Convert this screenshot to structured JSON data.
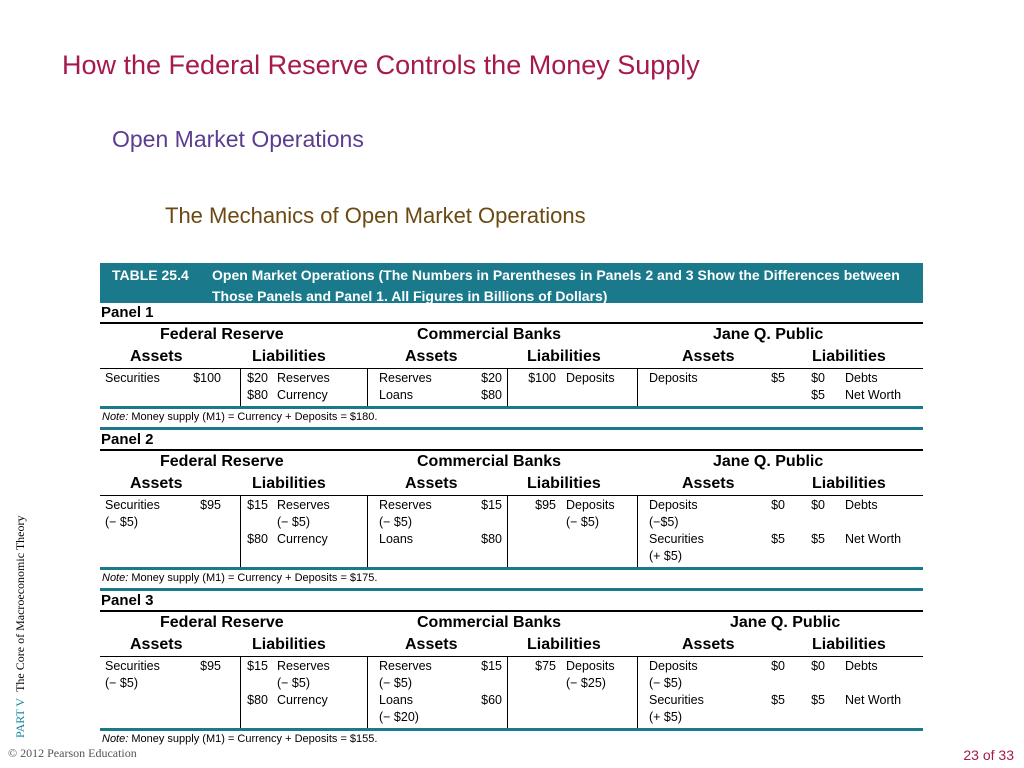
{
  "slide": {
    "title": "How the Federal Reserve Controls the Money Supply",
    "subtitle": "Open Market Operations",
    "subsubtitle": "The Mechanics of Open Market Operations",
    "sidebar_part": "PART  V",
    "sidebar_text": "The Core of Macroeconomic Theory",
    "copyright": "© 2012 Pearson Education",
    "page": "23 of 33"
  },
  "table": {
    "number": "TABLE 25.4",
    "caption": "Open Market Operations (The Numbers in Parentheses in Panels 2 and 3 Show the Differences between Those Panels and Panel 1. All Figures in Billions of Dollars)",
    "entities": [
      "Federal Reserve",
      "Commercial Banks",
      "Jane Q. Public"
    ],
    "assets_label": "Assets",
    "liabilities_label": "Liabilities",
    "note_label": "Note:",
    "panels": [
      {
        "label": "Panel 1",
        "note": "Money supply (M1) = Currency + Deposits = $180.",
        "rows": [
          {
            "fed_a_label": "Securities",
            "fed_a_val": "$100",
            "fed_l_val": "$20",
            "fed_l_label": "Reserves",
            "cb_a_label": "Reserves",
            "cb_a_val": "$20",
            "cb_l_val": "$100",
            "cb_l_label": "Deposits",
            "pub_a_label": "Deposits",
            "pub_a_val": "$5",
            "pub_l_val": "$0",
            "pub_l_label": "Debts"
          },
          {
            "fed_a_label": "",
            "fed_a_val": "",
            "fed_l_val": "$80",
            "fed_l_label": "Currency",
            "cb_a_label": "Loans",
            "cb_a_val": "$80",
            "cb_l_val": "",
            "cb_l_label": "",
            "pub_a_label": "",
            "pub_a_val": "",
            "pub_l_val": "$5",
            "pub_l_label": "Net Worth"
          }
        ]
      },
      {
        "label": "Panel 2",
        "note": "Money supply (M1) = Currency + Deposits = $175.",
        "rows": [
          {
            "fed_a_label": "Securities",
            "fed_a_val": "$95",
            "fed_l_val": "$15",
            "fed_l_label": "Reserves",
            "cb_a_label": "Reserves",
            "cb_a_val": "$15",
            "cb_l_val": "$95",
            "cb_l_label": "Deposits",
            "pub_a_label": "Deposits",
            "pub_a_val": "$0",
            "pub_l_val": "$0",
            "pub_l_label": "Debts"
          },
          {
            "fed_a_label": "(− $5)",
            "fed_a_val": "",
            "fed_l_val": "",
            "fed_l_label": "(− $5)",
            "cb_a_label": " (− $5)",
            "cb_a_val": "",
            "cb_l_val": "",
            "cb_l_label": "(− $5)",
            "pub_a_label": " (−$5)",
            "pub_a_val": "",
            "pub_l_val": "",
            "pub_l_label": ""
          },
          {
            "fed_a_label": "",
            "fed_a_val": "",
            "fed_l_val": "$80",
            "fed_l_label": "Currency",
            "cb_a_label": "Loans",
            "cb_a_val": "$80",
            "cb_l_val": "",
            "cb_l_label": "",
            "pub_a_label": "Securities",
            "pub_a_val": "$5",
            "pub_l_val": "$5",
            "pub_l_label": "Net Worth"
          },
          {
            "fed_a_label": "",
            "fed_a_val": "",
            "fed_l_val": "",
            "fed_l_label": "",
            "cb_a_label": "",
            "cb_a_val": "",
            "cb_l_val": "",
            "cb_l_label": "",
            "pub_a_label": "(+ $5)",
            "pub_a_val": "",
            "pub_l_val": "",
            "pub_l_label": ""
          }
        ]
      },
      {
        "label": "Panel 3",
        "note": "Money supply (M1) = Currency + Deposits = $155.",
        "rows": [
          {
            "fed_a_label": "Securities",
            "fed_a_val": "$95",
            "fed_l_val": "$15",
            "fed_l_label": "Reserves",
            "cb_a_label": "Reserves",
            "cb_a_val": "$15",
            "cb_l_val": "$75",
            "cb_l_label": "Deposits",
            "pub_a_label": "Deposits",
            "pub_a_val": "$0",
            "pub_l_val": "$0",
            "pub_l_label": "Debts"
          },
          {
            "fed_a_label": "(− $5)",
            "fed_a_val": "",
            "fed_l_val": "",
            "fed_l_label": "(− $5)",
            "cb_a_label": " (− $5)",
            "cb_a_val": "",
            "cb_l_val": "",
            "cb_l_label": "(− $25)",
            "pub_a_label": " (− $5)",
            "pub_a_val": "",
            "pub_l_val": "",
            "pub_l_label": ""
          },
          {
            "fed_a_label": "",
            "fed_a_val": "",
            "fed_l_val": "$80",
            "fed_l_label": "Currency",
            "cb_a_label": "Loans",
            "cb_a_val": "$60",
            "cb_l_val": "",
            "cb_l_label": "",
            "pub_a_label": "Securities",
            "pub_a_val": "$5",
            "pub_l_val": "$5",
            "pub_l_label": "Net Worth"
          },
          {
            "fed_a_label": "",
            "fed_a_val": "",
            "fed_l_val": "",
            "fed_l_label": "",
            "cb_a_label": "(− $20)",
            "cb_a_val": "",
            "cb_l_val": "",
            "cb_l_label": "",
            "pub_a_label": "(+ $5)",
            "pub_a_val": "",
            "pub_l_val": "",
            "pub_l_label": ""
          }
        ]
      }
    ]
  },
  "colors": {
    "title": "#a6194e",
    "subtitle": "#5b3d8f",
    "subsubtitle": "#6b4a12",
    "teal": "#1a7a8c"
  }
}
